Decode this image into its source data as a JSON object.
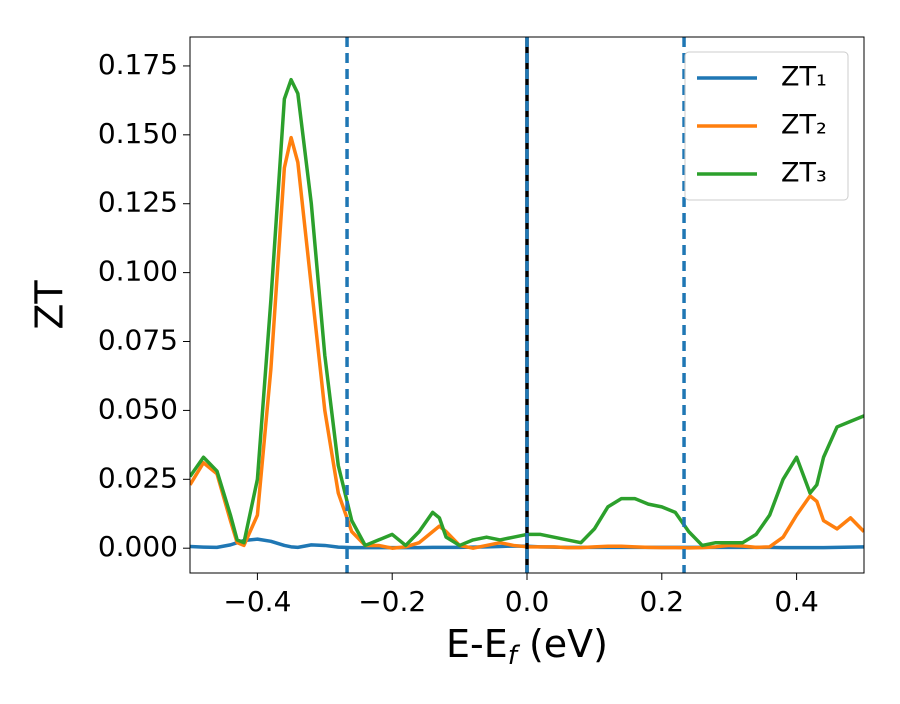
{
  "chart_data": {
    "type": "line",
    "xlabel": {
      "main": "E-E",
      "sub": "f",
      "rest": " (eV)"
    },
    "ylabel": "ZT",
    "x": [
      -0.5,
      -0.48,
      -0.46,
      -0.44,
      -0.43,
      -0.42,
      -0.4,
      -0.38,
      -0.36,
      -0.35,
      -0.34,
      -0.32,
      -0.3,
      -0.28,
      -0.26,
      -0.24,
      -0.22,
      -0.2,
      -0.18,
      -0.16,
      -0.14,
      -0.13,
      -0.12,
      -0.1,
      -0.08,
      -0.06,
      -0.04,
      -0.02,
      0,
      0.02,
      0.04,
      0.06,
      0.08,
      0.1,
      0.12,
      0.14,
      0.16,
      0.18,
      0.2,
      0.22,
      0.24,
      0.26,
      0.28,
      0.3,
      0.32,
      0.34,
      0.36,
      0.38,
      0.4,
      0.42,
      0.43,
      0.44,
      0.46,
      0.48,
      0.5
    ],
    "series": [
      {
        "name": "ZT₁",
        "color": "#1f77b4",
        "values": [
          0.0006,
          0.0004,
          0.0003,
          0.0012,
          0.002,
          0.0028,
          0.0033,
          0.0025,
          0.001,
          0.0005,
          0.0003,
          0.0012,
          0.001,
          0.0004,
          0.0002,
          0.0002,
          0.0002,
          0.0002,
          0.0002,
          0.0002,
          0.0003,
          0.0003,
          0.0003,
          0.0003,
          0.0004,
          0.0005,
          0.0006,
          0.0008,
          0.0007,
          0.0005,
          0.0004,
          0.0003,
          0.0003,
          0.0003,
          0.0003,
          0.0003,
          0.0003,
          0.0003,
          0.0003,
          0.0003,
          0.0003,
          0.0003,
          0.0003,
          0.0003,
          0.0003,
          0.0003,
          0.0003,
          0.0002,
          0.0002,
          0.0002,
          0.0002,
          0.0002,
          0.0003,
          0.0004,
          0.0005
        ]
      },
      {
        "name": "ZT₂",
        "color": "#ff7f0e",
        "values": [
          0.023,
          0.031,
          0.027,
          0.01,
          0.002,
          0.001,
          0.012,
          0.065,
          0.138,
          0.149,
          0.14,
          0.095,
          0.05,
          0.02,
          0.006,
          0.001,
          0.001,
          0.0,
          0.0005,
          0.002,
          0.006,
          0.008,
          0.006,
          0.001,
          0.0,
          0.001,
          0.002,
          0.001,
          0.0005,
          0.0005,
          0.0005,
          0.0002,
          0.0002,
          0.0005,
          0.0007,
          0.0007,
          0.0005,
          0.0003,
          0.0002,
          0.0002,
          0.0001,
          0.0002,
          0.0005,
          0.001,
          0.0008,
          0.0003,
          0.0005,
          0.004,
          0.012,
          0.019,
          0.017,
          0.01,
          0.007,
          0.011,
          0.006
        ]
      },
      {
        "name": "ZT₃",
        "color": "#2ca02c",
        "values": [
          0.026,
          0.033,
          0.028,
          0.012,
          0.003,
          0.002,
          0.025,
          0.09,
          0.163,
          0.17,
          0.165,
          0.125,
          0.07,
          0.03,
          0.01,
          0.001,
          0.003,
          0.005,
          0.001,
          0.006,
          0.013,
          0.011,
          0.004,
          0.001,
          0.003,
          0.004,
          0.003,
          0.004,
          0.005,
          0.005,
          0.004,
          0.003,
          0.002,
          0.007,
          0.015,
          0.018,
          0.018,
          0.016,
          0.015,
          0.013,
          0.006,
          0.001,
          0.002,
          0.002,
          0.002,
          0.005,
          0.012,
          0.025,
          0.033,
          0.02,
          0.023,
          0.033,
          0.044,
          0.046,
          0.048
        ]
      }
    ],
    "vlines": [
      {
        "x": -0.267,
        "color": "#1f77b4",
        "style": "dashed"
      },
      {
        "x": 0,
        "color": "#000000",
        "style": "solid"
      },
      {
        "x": 0,
        "color": "#1f77b4",
        "style": "dashed"
      },
      {
        "x": 0.233,
        "color": "#1f77b4",
        "style": "dashed"
      }
    ],
    "xlim": [
      -0.5,
      0.5
    ],
    "ylim": [
      -0.009,
      0.1855
    ],
    "xticks": [
      {
        "value": -0.4,
        "label": "−0.4"
      },
      {
        "value": -0.2,
        "label": "−0.2"
      },
      {
        "value": 0,
        "label": "0.0"
      },
      {
        "value": 0.2,
        "label": "0.2"
      },
      {
        "value": 0.4,
        "label": "0.4"
      }
    ],
    "yticks": [
      {
        "value": 0,
        "label": "0.000"
      },
      {
        "value": 0.025,
        "label": "0.025"
      },
      {
        "value": 0.05,
        "label": "0.050"
      },
      {
        "value": 0.075,
        "label": "0.075"
      },
      {
        "value": 0.1,
        "label": "0.100"
      },
      {
        "value": 0.125,
        "label": "0.125"
      },
      {
        "value": 0.15,
        "label": "0.150"
      },
      {
        "value": 0.175,
        "label": "0.175"
      }
    ],
    "legend": "upper right",
    "grid": false
  }
}
